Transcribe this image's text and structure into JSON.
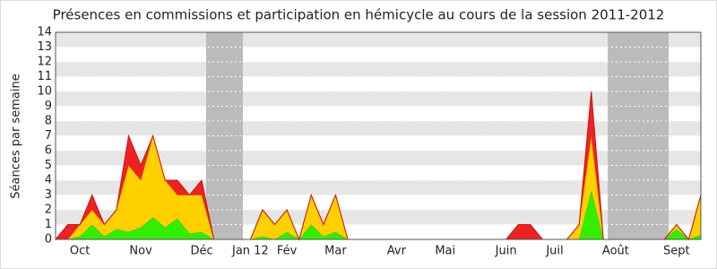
{
  "chart_data": {
    "type": "stacked-area",
    "title": "Présences en commissions et participation en hémicycle au cours de la session 2011-2012",
    "y_label": "Séances par semaine",
    "categories": [
      null,
      null,
      "Oct",
      null,
      null,
      null,
      null,
      "Nov",
      null,
      null,
      null,
      null,
      "Déc",
      null,
      null,
      null,
      "Jan 12",
      null,
      null,
      "Fév",
      null,
      null,
      null,
      "Mar",
      null,
      null,
      null,
      null,
      "Avr",
      null,
      null,
      null,
      "Mai",
      null,
      null,
      null,
      null,
      "Juin",
      null,
      null,
      null,
      "Juil",
      null,
      null,
      null,
      null,
      "Août",
      null,
      null,
      null,
      null,
      "Sept",
      null,
      null
    ],
    "series": [
      {
        "color": "#33ee00",
        "values": [
          0,
          0,
          0.2,
          1,
          0.2,
          0.7,
          0.5,
          0.8,
          1.5,
          0.8,
          1.4,
          0.4,
          0.5,
          0,
          0,
          0,
          0,
          0.2,
          0,
          0.5,
          0,
          1,
          0.2,
          0.5,
          0,
          0,
          0,
          0,
          0,
          0,
          0,
          0,
          0,
          0,
          0,
          0,
          0,
          0,
          0,
          0,
          0,
          0,
          0,
          0,
          3.3,
          0,
          0,
          0,
          0,
          0,
          0,
          0.7,
          0,
          0.3
        ]
      },
      {
        "color": "#ffd000",
        "values": [
          0,
          0,
          0.8,
          1,
          0.8,
          1.3,
          4.5,
          3.2,
          5.5,
          3.2,
          1.6,
          2.6,
          2.5,
          0,
          0,
          0,
          0,
          1.8,
          1,
          1.5,
          0,
          2,
          0.8,
          2.5,
          0,
          0,
          0,
          0,
          0,
          0,
          0,
          0,
          0,
          0,
          0,
          0,
          0,
          0,
          0,
          0,
          0,
          0,
          0,
          1,
          3.7,
          0,
          0,
          0,
          0,
          0,
          0,
          0.3,
          0,
          2.7
        ]
      },
      {
        "color": "#ee2222",
        "values": [
          0,
          1,
          0,
          1,
          0,
          0,
          2,
          1,
          0,
          0,
          1,
          0,
          1,
          0,
          0,
          0,
          0,
          0,
          0,
          0,
          0,
          0,
          0,
          0,
          0,
          0,
          0,
          0,
          0,
          0,
          0,
          0,
          0,
          0,
          0,
          0,
          0,
          0,
          1,
          1,
          0,
          0,
          0,
          0,
          3,
          0,
          0,
          0,
          0,
          0,
          0,
          0,
          0,
          0
        ]
      }
    ],
    "ylim": [
      0,
      14
    ],
    "yticks": [
      0,
      1,
      2,
      3,
      4,
      5,
      6,
      7,
      8,
      9,
      10,
      11,
      12,
      13,
      14
    ],
    "grid": true
  }
}
